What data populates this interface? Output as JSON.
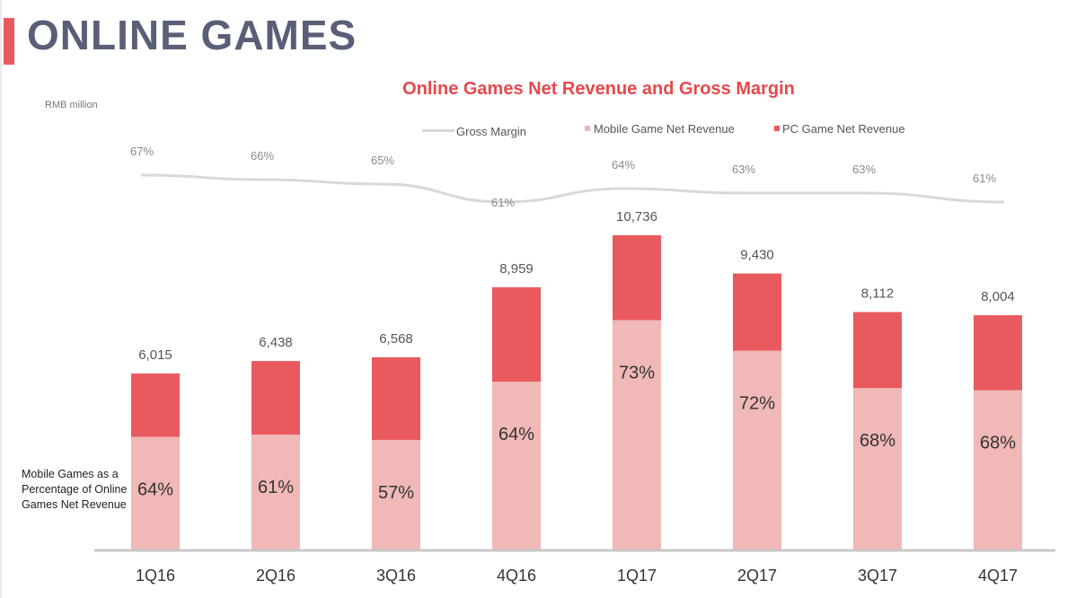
{
  "page": {
    "title": "ONLINE GAMES"
  },
  "chart_data": {
    "type": "bar",
    "stacked": true,
    "title": "Online Games Net Revenue and Gross Margin",
    "unit_label": "RMB million",
    "side_note": "Mobile Games as a Percentage of Online Games Net Revenue",
    "categories": [
      "1Q16",
      "2Q16",
      "3Q16",
      "4Q16",
      "1Q17",
      "2Q17",
      "3Q17",
      "4Q17"
    ],
    "totals": [
      6015,
      6438,
      6568,
      8959,
      10736,
      9430,
      8112,
      8004
    ],
    "total_labels": [
      "6,015",
      "6,438",
      "6,568",
      "8,959",
      "10,736",
      "9,430",
      "8,112",
      "8,004"
    ],
    "mobile_share": [
      0.64,
      0.61,
      0.57,
      0.64,
      0.73,
      0.72,
      0.68,
      0.68
    ],
    "mobile_share_labels": [
      "64%",
      "61%",
      "57%",
      "64%",
      "73%",
      "72%",
      "68%",
      "68%"
    ],
    "series": [
      {
        "name": "Mobile Game Net Revenue",
        "values": [
          3850,
          3927,
          3744,
          5734,
          7837,
          6790,
          5516,
          5443
        ],
        "color": "#f0b8b6"
      },
      {
        "name": "PC Game Net Revenue",
        "values": [
          2165,
          2511,
          2824,
          3225,
          2899,
          2640,
          2596,
          2561
        ],
        "color": "#e85a5e"
      }
    ],
    "line_series": {
      "name": "Gross Margin",
      "values": [
        0.67,
        0.66,
        0.65,
        0.61,
        0.64,
        0.63,
        0.63,
        0.61
      ],
      "labels": [
        "67%",
        "66%",
        "65%",
        "61%",
        "64%",
        "63%",
        "63%",
        "61%"
      ],
      "color": "#d8d8d8"
    },
    "ylim": [
      0,
      11000
    ],
    "legend": [
      "Gross Margin",
      "Mobile Game Net Revenue",
      "PC Game Net Revenue"
    ],
    "legend_position": "top"
  }
}
